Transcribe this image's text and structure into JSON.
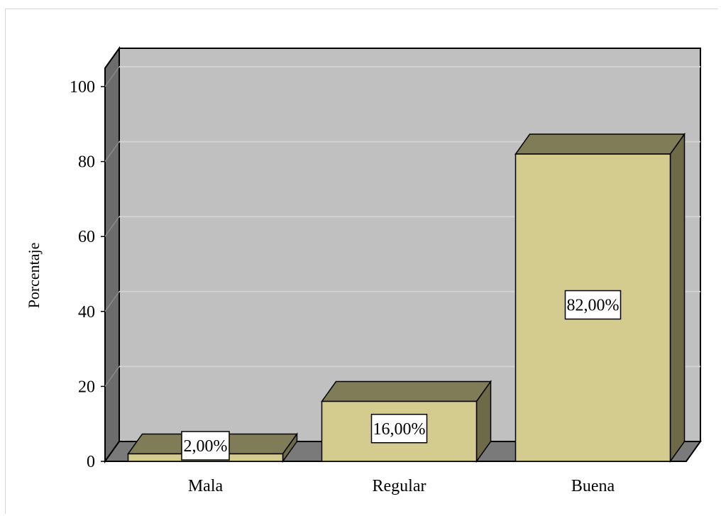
{
  "chart_data": {
    "type": "bar",
    "categories": [
      "Mala",
      "Regular",
      "Buena"
    ],
    "values": [
      2.0,
      16.0,
      82.0
    ],
    "data_labels": [
      "2,00%",
      "16,00%",
      "82,00%"
    ],
    "title": "",
    "xlabel": "",
    "ylabel": "Porcentaje",
    "ylim": [
      0,
      100
    ],
    "yticks": [
      0,
      20,
      40,
      60,
      80,
      100
    ],
    "grid": true,
    "style": "3d",
    "colors": {
      "bar_face": "#d4cc8e",
      "bar_top": "#817c58",
      "bar_side": "#6e6a47",
      "plot_back": "#c0c0c0",
      "plot_left_wall": "#6c6c6c",
      "plot_floor": "#7a7a7a",
      "gridline": "#d2d2d2"
    }
  }
}
